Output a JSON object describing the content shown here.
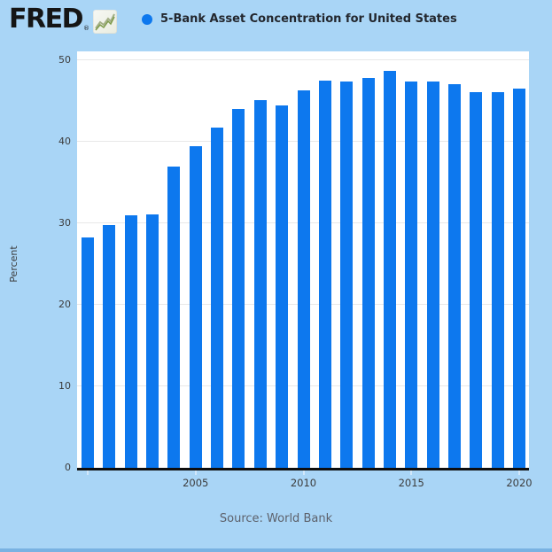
{
  "header": {
    "logo_text": "FRED",
    "registered_mark": "®",
    "sparkline_icon": "line-chart-sparkline",
    "legend_marker_color": "#0d78ee",
    "series_title": "5-Bank Asset Concentration for United States"
  },
  "chart_data": {
    "type": "bar",
    "title": "5-Bank Asset Concentration for United States",
    "xlabel": "",
    "ylabel": "Percent",
    "ylim": [
      0,
      51
    ],
    "yticks": [
      0,
      10,
      20,
      30,
      40,
      50
    ],
    "xtick_labels": [
      2005,
      2010,
      2015,
      2020
    ],
    "xticks_marked": [
      2000,
      2005,
      2010,
      2015,
      2020
    ],
    "grid": true,
    "legend_position": "top",
    "bar_color": "#0d78ee",
    "categories": [
      2000,
      2001,
      2002,
      2003,
      2004,
      2005,
      2006,
      2007,
      2008,
      2009,
      2010,
      2011,
      2012,
      2013,
      2014,
      2015,
      2016,
      2017,
      2018,
      2019,
      2020
    ],
    "values": [
      28.2,
      29.7,
      31.0,
      31.1,
      36.9,
      39.4,
      41.7,
      44.0,
      45.1,
      44.4,
      46.3,
      47.5,
      47.3,
      47.8,
      48.6,
      47.3,
      47.3,
      47.0,
      46.0,
      46.0,
      46.5
    ]
  },
  "footer": {
    "source": "Source: World Bank"
  },
  "colors": {
    "background": "#a9d5f6",
    "plot_background": "#ffffff",
    "bar": "#0d78ee",
    "axis_line": "#0e0e0e",
    "gridline": "#e8e8e8",
    "tick_text": "#3c3c3c",
    "source_text": "#5d616b",
    "bottom_strip": "#79b2e2"
  }
}
